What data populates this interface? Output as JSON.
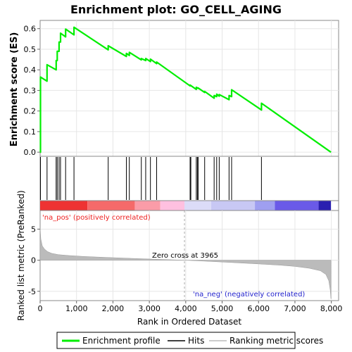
{
  "title": "Enrichment plot: GO_CELL_AGING",
  "colors": {
    "enrichment": "#00ee00",
    "hits": "#000000",
    "metric_fill": "#bbbbbb",
    "pos_label": "#ee2222",
    "neg_label": "#2222cc",
    "grid": "#e6e6e6"
  },
  "chart_data": [
    {
      "type": "line",
      "panel": "enrichment",
      "ylabel": "Enrichment score (ES)",
      "xlim": [
        0,
        8200
      ],
      "ylim": [
        -0.02,
        0.64
      ],
      "yticks": [
        0.0,
        0.1,
        0.2,
        0.3,
        0.4,
        0.5,
        0.6
      ],
      "ytick_labels": [
        "0.0",
        "0.1",
        "0.2",
        "0.3",
        "0.4",
        "0.5",
        "0.6"
      ],
      "series": [
        {
          "x": [
            0,
            10,
            10,
            190,
            190,
            440,
            440,
            470,
            470,
            520,
            520,
            560,
            560,
            700,
            700,
            930,
            930,
            1870,
            1870,
            2370,
            2370,
            2450,
            2450,
            2780,
            2780,
            2900,
            2900,
            3030,
            3030,
            3200,
            3200,
            4120,
            4120,
            4290,
            4290,
            4340,
            4340,
            4520,
            4520,
            4780,
            4780,
            4850,
            4850,
            4920,
            4920,
            5190,
            5190,
            5260,
            5260,
            6080,
            6080,
            7990
          ],
          "y": [
            0.0,
            0.0,
            0.365,
            0.345,
            0.425,
            0.4,
            0.445,
            0.445,
            0.49,
            0.49,
            0.535,
            0.535,
            0.578,
            0.56,
            0.598,
            0.57,
            0.607,
            0.497,
            0.517,
            0.465,
            0.48,
            0.47,
            0.485,
            0.448,
            0.455,
            0.445,
            0.455,
            0.44,
            0.452,
            0.43,
            0.438,
            0.322,
            0.326,
            0.305,
            0.315,
            0.31,
            0.312,
            0.29,
            0.295,
            0.262,
            0.275,
            0.27,
            0.282,
            0.272,
            0.28,
            0.255,
            0.275,
            0.27,
            0.303,
            0.205,
            0.238,
            0.0
          ]
        }
      ]
    },
    {
      "type": "hits",
      "panel": "hits",
      "x": [
        10,
        190,
        440,
        470,
        520,
        560,
        700,
        930,
        1870,
        2370,
        2450,
        2780,
        2900,
        3030,
        3200,
        4120,
        4140,
        4290,
        4320,
        4340,
        4520,
        4780,
        4850,
        4920,
        5190,
        5260,
        6080
      ]
    },
    {
      "type": "heatmap",
      "panel": "rank-colorbar",
      "segments": [
        {
          "from": 0,
          "to": 1300,
          "color": "#ee3333"
        },
        {
          "from": 1300,
          "to": 2600,
          "color": "#f56a6a"
        },
        {
          "from": 2600,
          "to": 3300,
          "color": "#fa9ca8"
        },
        {
          "from": 3300,
          "to": 3965,
          "color": "#ffc0e0"
        },
        {
          "from": 3965,
          "to": 4700,
          "color": "#dcdcf8"
        },
        {
          "from": 4700,
          "to": 5900,
          "color": "#c8c8f4"
        },
        {
          "from": 5900,
          "to": 6450,
          "color": "#9f9ff0"
        },
        {
          "from": 6450,
          "to": 7650,
          "color": "#6a5ae8"
        },
        {
          "from": 7650,
          "to": 7990,
          "color": "#2a1fb0"
        }
      ]
    },
    {
      "type": "area",
      "panel": "ranked-metric",
      "xlabel": "Rank in Ordered Dataset",
      "ylabel": "Ranked list metric (PreRanked)",
      "xlim": [
        0,
        8200
      ],
      "ylim": [
        -6.5,
        8.0
      ],
      "yticks": [
        -5,
        0,
        5
      ],
      "ytick_labels": [
        "-5",
        "0",
        "5"
      ],
      "xticks": [
        0,
        1000,
        2000,
        3000,
        4000,
        5000,
        6000,
        7000,
        8000
      ],
      "xtick_labels": [
        "0",
        "1,000",
        "2,000",
        "3,000",
        "4,000",
        "5,000",
        "6,000",
        "7,000",
        "8,000"
      ],
      "x": [
        0,
        20,
        60,
        120,
        200,
        320,
        500,
        800,
        1200,
        1800,
        2500,
        3200,
        3965,
        4500,
        5200,
        6000,
        6600,
        7000,
        7400,
        7700,
        7850,
        7930,
        7970,
        7990
      ],
      "y": [
        5.2,
        3.4,
        2.3,
        1.8,
        1.4,
        1.1,
        0.9,
        0.75,
        0.6,
        0.45,
        0.3,
        0.15,
        0.0,
        -0.15,
        -0.35,
        -0.6,
        -0.8,
        -1.0,
        -1.3,
        -1.7,
        -2.3,
        -3.3,
        -4.8,
        -6.2
      ],
      "zero_cross": 3965
    }
  ],
  "annotations": {
    "pos_label": "'na_pos' (positively correlated)",
    "neg_label": "'na_neg' (negatively correlated)",
    "zero_cross_label": "Zero cross at 3965"
  },
  "legend": {
    "items": [
      {
        "label": "Enrichment profile",
        "swatch": "line-green"
      },
      {
        "label": "Hits",
        "swatch": "line-black"
      },
      {
        "label": "Ranking metric scores",
        "swatch": "line-gray"
      }
    ]
  }
}
